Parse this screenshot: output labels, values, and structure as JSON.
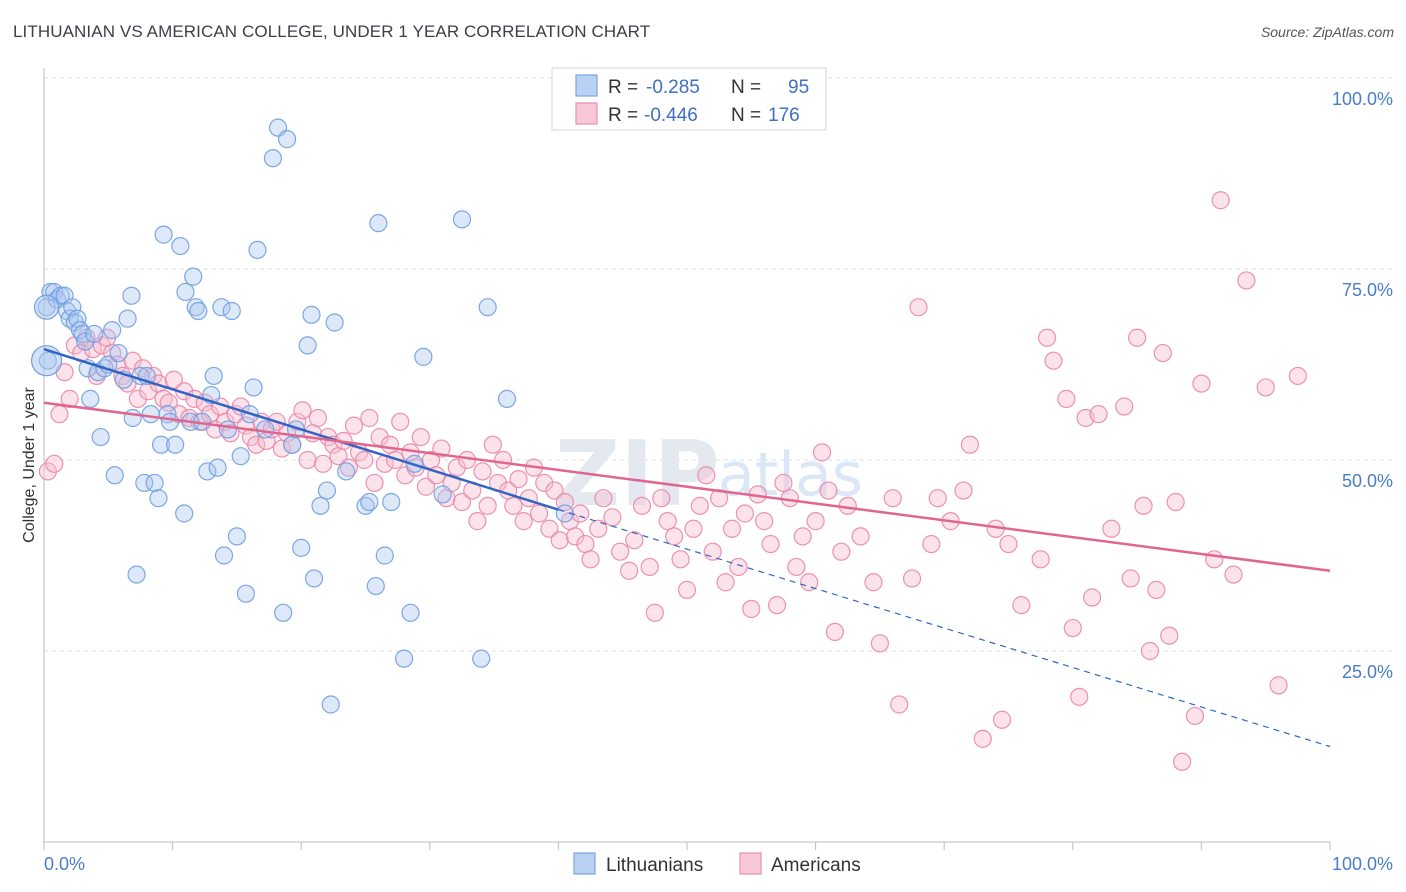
{
  "title": "LITHUANIAN VS AMERICAN COLLEGE, UNDER 1 YEAR CORRELATION CHART",
  "source": "Source: ZipAtlas.com",
  "watermark": {
    "zip": "ZIP",
    "atlas": "atlas"
  },
  "colors": {
    "blue": "#6f9fe0",
    "blue_fill": "#a9c6ef",
    "blue_line": "#2f66c5",
    "pink": "#ea86a8",
    "pink_fill": "#f6bfd2",
    "pink_line": "#e0668f",
    "grid": "#dcdcdc",
    "axis_text": "#4a7dc9"
  },
  "legend": {
    "rows": [
      {
        "r_label": "R =",
        "r_value": "-0.285",
        "n_label": "N =",
        "n_value": "95",
        "series": "Lithuanians"
      },
      {
        "r_label": "R =",
        "r_value": "-0.446",
        "n_label": "N =",
        "n_value": "176",
        "series": "Americans"
      }
    ]
  },
  "chart_data": {
    "type": "scatter",
    "title": "LITHUANIAN VS AMERICAN COLLEGE, UNDER 1 YEAR CORRELATION CHART",
    "xlabel": "",
    "ylabel": "College, Under 1 year",
    "xlim": [
      0,
      100
    ],
    "ylim": [
      0,
      100
    ],
    "x_ticks": [
      {
        "value": 0,
        "label": "0.0%"
      },
      {
        "value": 100,
        "label": "100.0%"
      }
    ],
    "y_ticks": [
      {
        "value": 100,
        "label": "100.0%"
      },
      {
        "value": 75,
        "label": "75.0%"
      },
      {
        "value": 50,
        "label": "50.0%"
      },
      {
        "value": 25,
        "label": "25.0%"
      }
    ],
    "series": [
      {
        "name": "Lithuanians",
        "r": -0.285,
        "n": 95,
        "trend": {
          "x0": 0,
          "y0": 64.5,
          "x1": 40,
          "y1": 43.5,
          "dashed_to_x": 100,
          "dashed_to_y": 12.5
        },
        "points": [
          [
            0.2,
            70
          ],
          [
            0.3,
            63
          ],
          [
            0.5,
            72
          ],
          [
            0.8,
            72
          ],
          [
            1,
            71
          ],
          [
            1.3,
            71.5
          ],
          [
            1.6,
            71.5
          ],
          [
            1.8,
            69.5
          ],
          [
            2,
            68.5
          ],
          [
            2.2,
            70
          ],
          [
            2.4,
            68
          ],
          [
            2.6,
            68.5
          ],
          [
            2.8,
            67
          ],
          [
            3,
            66.5
          ],
          [
            3.2,
            65.5
          ],
          [
            3.4,
            62
          ],
          [
            3.6,
            58
          ],
          [
            3.9,
            66.5
          ],
          [
            4.2,
            61.5
          ],
          [
            4.4,
            53
          ],
          [
            4.7,
            62
          ],
          [
            5,
            62.5
          ],
          [
            5.3,
            67
          ],
          [
            5.5,
            48
          ],
          [
            5.8,
            64
          ],
          [
            6.2,
            60.5
          ],
          [
            6.5,
            68.5
          ],
          [
            6.8,
            71.5
          ],
          [
            6.9,
            55.5
          ],
          [
            7.2,
            35
          ],
          [
            7.5,
            61
          ],
          [
            7.8,
            47
          ],
          [
            8,
            61
          ],
          [
            8.3,
            56
          ],
          [
            8.6,
            47
          ],
          [
            8.9,
            45
          ],
          [
            9.1,
            52
          ],
          [
            9.3,
            79.5
          ],
          [
            9.6,
            56
          ],
          [
            9.8,
            55
          ],
          [
            10.2,
            52
          ],
          [
            10.6,
            78
          ],
          [
            10.9,
            43
          ],
          [
            11,
            72
          ],
          [
            11.4,
            55
          ],
          [
            11.6,
            74
          ],
          [
            11.8,
            70
          ],
          [
            12,
            69.5
          ],
          [
            12.3,
            55
          ],
          [
            12.7,
            48.5
          ],
          [
            13,
            58.5
          ],
          [
            13.2,
            61
          ],
          [
            13.5,
            49
          ],
          [
            13.8,
            70
          ],
          [
            14,
            37.5
          ],
          [
            14.3,
            54
          ],
          [
            14.6,
            69.5
          ],
          [
            15,
            40
          ],
          [
            15.3,
            50.5
          ],
          [
            15.7,
            32.5
          ],
          [
            16,
            56
          ],
          [
            16.3,
            59.5
          ],
          [
            16.6,
            77.5
          ],
          [
            17.2,
            54
          ],
          [
            17.8,
            89.5
          ],
          [
            18.2,
            93.5
          ],
          [
            18.6,
            30
          ],
          [
            18.9,
            92
          ],
          [
            19.3,
            52
          ],
          [
            19.6,
            54
          ],
          [
            20,
            38.5
          ],
          [
            20.5,
            65
          ],
          [
            20.8,
            69
          ],
          [
            21,
            34.5
          ],
          [
            21.5,
            44
          ],
          [
            22,
            46
          ],
          [
            22.3,
            18
          ],
          [
            22.6,
            68
          ],
          [
            23.5,
            48.5
          ],
          [
            25,
            44
          ],
          [
            25.3,
            44.5
          ],
          [
            25.8,
            33.5
          ],
          [
            26,
            81
          ],
          [
            26.5,
            37.5
          ],
          [
            27,
            44.5
          ],
          [
            28,
            24
          ],
          [
            28.5,
            30
          ],
          [
            28.8,
            49.5
          ],
          [
            29.5,
            63.5
          ],
          [
            31,
            45.5
          ],
          [
            32.5,
            81.5
          ],
          [
            34,
            24
          ],
          [
            34.5,
            70
          ],
          [
            36,
            58
          ],
          [
            40.5,
            43
          ]
        ]
      },
      {
        "name": "Americans",
        "r": -0.446,
        "n": 176,
        "trend": {
          "x0": 0,
          "y0": 57.5,
          "x1": 100,
          "y1": 35.5
        },
        "points": [
          [
            0.3,
            48.5
          ],
          [
            0.8,
            49.5
          ],
          [
            1.2,
            56
          ],
          [
            1.6,
            61.5
          ],
          [
            2,
            58
          ],
          [
            2.4,
            65
          ],
          [
            2.9,
            64
          ],
          [
            3.3,
            66
          ],
          [
            3.8,
            64.5
          ],
          [
            4.1,
            61
          ],
          [
            4.5,
            65
          ],
          [
            4.9,
            66
          ],
          [
            5.3,
            64
          ],
          [
            5.7,
            62.5
          ],
          [
            6.1,
            61
          ],
          [
            6.5,
            60
          ],
          [
            6.9,
            63
          ],
          [
            7.3,
            58
          ],
          [
            7.7,
            62
          ],
          [
            8.1,
            59
          ],
          [
            8.5,
            61
          ],
          [
            8.9,
            60
          ],
          [
            9.3,
            58
          ],
          [
            9.7,
            57.5
          ],
          [
            10.1,
            60.5
          ],
          [
            10.5,
            56
          ],
          [
            10.9,
            59
          ],
          [
            11.3,
            55.5
          ],
          [
            11.7,
            58
          ],
          [
            12.1,
            55
          ],
          [
            12.5,
            57.5
          ],
          [
            12.9,
            56
          ],
          [
            13.3,
            54
          ],
          [
            13.7,
            57
          ],
          [
            14.1,
            55
          ],
          [
            14.5,
            53.5
          ],
          [
            14.9,
            56
          ],
          [
            15.3,
            57
          ],
          [
            15.7,
            54.5
          ],
          [
            16.1,
            53
          ],
          [
            16.5,
            52
          ],
          [
            16.9,
            55
          ],
          [
            17.3,
            52.5
          ],
          [
            17.7,
            54
          ],
          [
            18.1,
            55
          ],
          [
            18.5,
            51.5
          ],
          [
            18.9,
            53.5
          ],
          [
            19.3,
            52
          ],
          [
            19.7,
            55
          ],
          [
            20.1,
            56.5
          ],
          [
            20.5,
            50
          ],
          [
            20.9,
            53.5
          ],
          [
            21.3,
            55.5
          ],
          [
            21.7,
            49.5
          ],
          [
            22.1,
            53
          ],
          [
            22.5,
            52
          ],
          [
            22.9,
            50.5
          ],
          [
            23.3,
            52.5
          ],
          [
            23.7,
            49
          ],
          [
            24.1,
            54.5
          ],
          [
            24.5,
            51
          ],
          [
            24.9,
            50
          ],
          [
            25.3,
            55.5
          ],
          [
            25.7,
            47
          ],
          [
            26.1,
            53
          ],
          [
            26.5,
            49.5
          ],
          [
            26.9,
            52
          ],
          [
            27.3,
            50
          ],
          [
            27.7,
            55
          ],
          [
            28.1,
            48
          ],
          [
            28.5,
            51
          ],
          [
            28.9,
            49
          ],
          [
            29.3,
            53
          ],
          [
            29.7,
            46.5
          ],
          [
            30.1,
            50
          ],
          [
            30.5,
            48
          ],
          [
            30.9,
            51.5
          ],
          [
            31.3,
            45
          ],
          [
            31.7,
            47
          ],
          [
            32.1,
            49
          ],
          [
            32.5,
            44.5
          ],
          [
            32.9,
            50
          ],
          [
            33.3,
            46
          ],
          [
            33.7,
            42
          ],
          [
            34.1,
            48.5
          ],
          [
            34.5,
            44
          ],
          [
            34.9,
            52
          ],
          [
            35.3,
            47
          ],
          [
            35.7,
            50
          ],
          [
            36.1,
            46
          ],
          [
            36.5,
            44
          ],
          [
            36.9,
            47.5
          ],
          [
            37.3,
            42
          ],
          [
            37.7,
            45
          ],
          [
            38.1,
            49
          ],
          [
            38.5,
            43
          ],
          [
            38.9,
            47
          ],
          [
            39.3,
            41
          ],
          [
            39.7,
            46
          ],
          [
            40.1,
            39.5
          ],
          [
            40.5,
            44.5
          ],
          [
            40.9,
            42
          ],
          [
            41.3,
            40
          ],
          [
            41.7,
            43
          ],
          [
            42.1,
            39
          ],
          [
            42.5,
            37
          ],
          [
            43.1,
            41
          ],
          [
            43.5,
            45
          ],
          [
            44.2,
            42.5
          ],
          [
            44.8,
            38
          ],
          [
            45.5,
            35.5
          ],
          [
            45.9,
            39.5
          ],
          [
            46.5,
            44
          ],
          [
            47.1,
            36
          ],
          [
            47.5,
            30
          ],
          [
            48,
            45
          ],
          [
            48.5,
            42
          ],
          [
            49,
            40
          ],
          [
            49.5,
            37
          ],
          [
            50,
            33
          ],
          [
            50.5,
            41
          ],
          [
            51,
            44
          ],
          [
            51.5,
            48
          ],
          [
            52,
            38
          ],
          [
            52.5,
            45
          ],
          [
            53,
            34
          ],
          [
            53.5,
            41
          ],
          [
            54,
            36
          ],
          [
            54.5,
            43
          ],
          [
            55,
            30.5
          ],
          [
            55.5,
            45.5
          ],
          [
            56,
            42
          ],
          [
            56.5,
            39
          ],
          [
            57,
            31
          ],
          [
            57.5,
            47
          ],
          [
            58,
            45
          ],
          [
            58.5,
            36
          ],
          [
            59,
            40
          ],
          [
            59.5,
            34
          ],
          [
            60,
            42
          ],
          [
            60.5,
            51
          ],
          [
            61,
            46
          ],
          [
            61.5,
            27.5
          ],
          [
            62,
            38
          ],
          [
            62.5,
            44
          ],
          [
            63.5,
            40
          ],
          [
            64.5,
            34
          ],
          [
            65,
            26
          ],
          [
            66,
            45
          ],
          [
            66.5,
            18
          ],
          [
            67.5,
            34.5
          ],
          [
            68,
            70
          ],
          [
            69,
            39
          ],
          [
            69.5,
            45
          ],
          [
            70.5,
            42
          ],
          [
            71.5,
            46
          ],
          [
            72,
            52
          ],
          [
            73,
            13.5
          ],
          [
            74,
            41
          ],
          [
            74.5,
            16
          ],
          [
            75,
            39
          ],
          [
            76,
            31
          ],
          [
            77.5,
            37
          ],
          [
            78,
            66
          ],
          [
            78.5,
            63
          ],
          [
            79.5,
            58
          ],
          [
            80,
            28
          ],
          [
            80.5,
            19
          ],
          [
            81,
            55.5
          ],
          [
            81.5,
            32
          ],
          [
            82,
            56
          ],
          [
            83,
            41
          ],
          [
            84,
            57
          ],
          [
            84.5,
            34.5
          ],
          [
            85,
            66
          ],
          [
            85.5,
            44
          ],
          [
            86,
            25
          ],
          [
            86.5,
            33
          ],
          [
            87,
            64
          ],
          [
            87.5,
            27
          ],
          [
            88,
            44.5
          ],
          [
            88.5,
            10.5
          ],
          [
            89.5,
            16.5
          ],
          [
            90,
            60
          ],
          [
            91,
            37
          ],
          [
            91.5,
            84
          ],
          [
            92.5,
            35
          ],
          [
            93.5,
            73.5
          ],
          [
            95,
            59.5
          ],
          [
            96,
            20.5
          ],
          [
            97.5,
            61
          ]
        ]
      }
    ]
  },
  "bottom_legend": [
    {
      "name": "Lithuanians"
    },
    {
      "name": "Americans"
    }
  ]
}
